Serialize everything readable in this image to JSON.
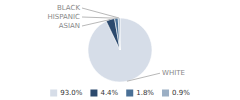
{
  "chart_data": {
    "type": "pie",
    "categories": [
      "WHITE",
      "ASIAN",
      "HISPANIC",
      "BLACK"
    ],
    "values": [
      93.0,
      4.4,
      1.8,
      0.9
    ],
    "value_labels": [
      "93.0%",
      "4.4%",
      "1.8%",
      "0.9%"
    ],
    "colors": [
      "#d6dde8",
      "#2c4a6e",
      "#4a7096",
      "#9bafc4"
    ],
    "legend": "bottom"
  }
}
